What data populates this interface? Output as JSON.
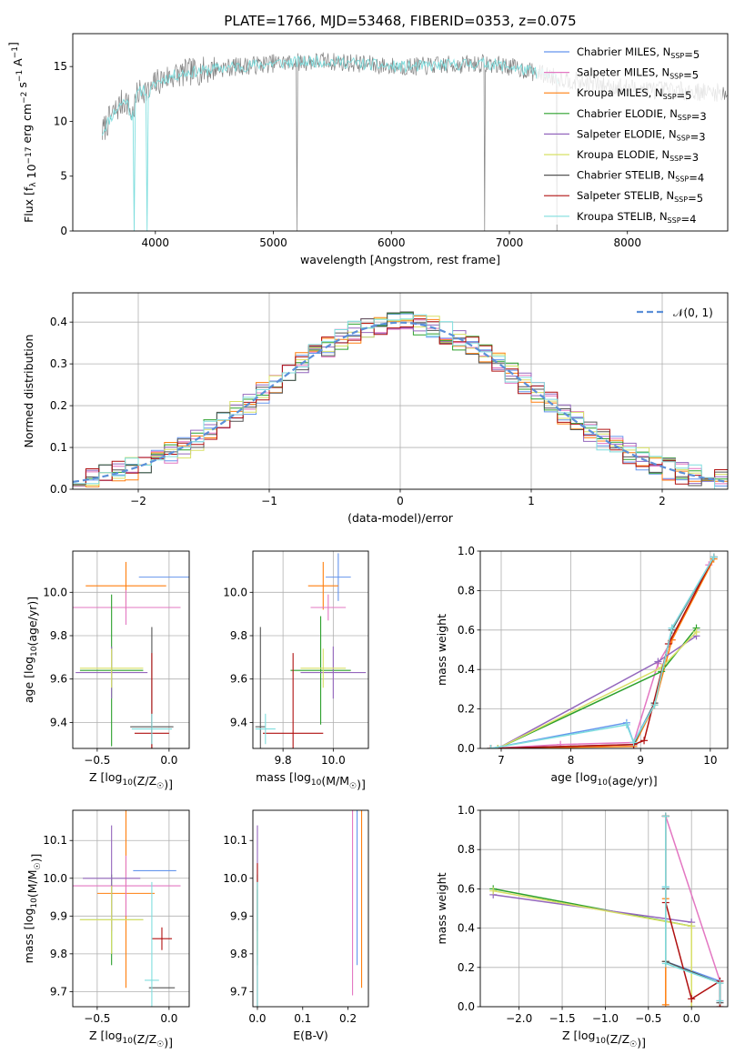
{
  "figure_title": "PLATE=1766, MJD=53468, FIBERID=0353, z=0.075",
  "series_colors": [
    "#6495ed",
    "#e377c2",
    "#ff7f0e",
    "#2ca02c",
    "#9467bd",
    "#d8e066",
    "#555555",
    "#b01010",
    "#7fdede"
  ],
  "chart_data": [
    {
      "id": "spectrum",
      "type": "line",
      "title": "PLATE=1766, MJD=53468, FIBERID=0353, z=0.075",
      "xlabel": "wavelength [Angstrom, rest frame]",
      "ylabel": "Flux [f_λ 10^-17 erg cm^-2 s^-1 A^-1]",
      "xlim": [
        3300,
        8850
      ],
      "ylim": [
        0,
        18
      ],
      "xticks": [
        4000,
        5000,
        6000,
        7000,
        8000
      ],
      "yticks": [
        0,
        5,
        10,
        15
      ],
      "grid": false,
      "legend_position": "right",
      "data_color": "#808080",
      "model_color": "#7fdede",
      "spectrum_x": [
        3550,
        3600,
        3650,
        3700,
        3750,
        3800,
        3850,
        3900,
        3950,
        4000,
        4100,
        4200,
        4300,
        4400,
        4500,
        4600,
        4700,
        4800,
        4900,
        5000,
        5200,
        5400,
        5600,
        5800,
        6000,
        6200,
        6400,
        6600,
        6800,
        7000,
        7200,
        7400,
        7600,
        7800,
        8000,
        8200,
        8400,
        8600,
        8850
      ],
      "spectrum_y": [
        9.0,
        10.0,
        10.8,
        11.5,
        12.0,
        10.5,
        12.5,
        13.0,
        12.5,
        13.5,
        14.0,
        14.3,
        14.5,
        14.6,
        14.8,
        14.9,
        15.0,
        15.1,
        15.2,
        15.3,
        15.4,
        15.5,
        15.4,
        15.2,
        15.0,
        15.0,
        15.1,
        15.2,
        15.3,
        15.0,
        14.5,
        14.0,
        13.6,
        13.3,
        13.1,
        12.9,
        12.8,
        12.7,
        12.6
      ],
      "legend": [
        "Chabrier MILES, N_SSP=5",
        "Salpeter MILES, N_SSP=5",
        "Kroupa MILES, N_SSP=5",
        "Chabrier ELODIE, N_SSP=3",
        "Salpeter ELODIE, N_SSP=3",
        "Kroupa ELODIE, N_SSP=3",
        "Chabrier STELIB, N_SSP=4",
        "Salpeter STELIB, N_SSP=5",
        "Kroupa STELIB, N_SSP=4"
      ]
    },
    {
      "id": "residuals",
      "type": "line",
      "xlabel": "(data-model)/error",
      "ylabel": "Normed distribution",
      "xlim": [
        -2.5,
        2.5
      ],
      "ylim": [
        0,
        0.47
      ],
      "xticks": [
        -2,
        -1,
        0,
        1,
        2
      ],
      "yticks": [
        0.0,
        0.1,
        0.2,
        0.3,
        0.4
      ],
      "grid": true,
      "legend_position": "top-right",
      "normal_label": "𝒩(0, 1)",
      "normal_color": "#5b8fd8",
      "hist_bin_width": 0.1
    },
    {
      "id": "age-vs-Z",
      "type": "scatter",
      "xlabel": "Z [log10(Z/Z☉)]",
      "ylabel": "age  [log10(age/yr)]",
      "xlim": [
        -0.67,
        0.14
      ],
      "ylim": [
        9.28,
        10.19
      ],
      "xticks": [
        -0.5,
        0.0
      ],
      "xticklabels": [
        "−0.5",
        "0.0"
      ],
      "yticks": [
        9.4,
        9.6,
        9.8,
        10.0
      ],
      "grid": true,
      "points": [
        {
          "series": 0,
          "x": 0.0,
          "y": 10.07,
          "xerr": 0.21,
          "yerr": 0
        },
        {
          "series": 2,
          "x": -0.3,
          "y": 10.03,
          "xerr": 0.28,
          "yerr": 0.11
        },
        {
          "series": 1,
          "x": -0.3,
          "y": 9.93,
          "xerr": 0.38,
          "yerr": 0.08
        },
        {
          "series": 3,
          "x": -0.4,
          "y": 9.64,
          "xerr": 0.22,
          "yerr": 0.35
        },
        {
          "series": 4,
          "x": -0.4,
          "y": 9.63,
          "xerr": 0.25,
          "yerr": 0.12
        },
        {
          "series": 5,
          "x": -0.4,
          "y": 9.65,
          "xerr": 0.22,
          "yerr": 0.09
        },
        {
          "series": 6,
          "x": -0.12,
          "y": 9.38,
          "xerr": 0.15,
          "yerr": 0.46
        },
        {
          "series": 7,
          "x": -0.12,
          "y": 9.35,
          "xerr": 0.12,
          "yerr": 0.37
        },
        {
          "series": 8,
          "x": -0.12,
          "y": 9.37,
          "xerr": 0.14,
          "yerr": 0.07
        }
      ]
    },
    {
      "id": "age-vs-mass",
      "type": "scatter",
      "xlabel": "mass [log10(M/M☉)]",
      "ylabel": "",
      "xlim": [
        9.68,
        10.14
      ],
      "ylim": [
        9.28,
        10.19
      ],
      "xticks": [
        9.8,
        10.0
      ],
      "yticks": [
        9.4,
        9.6,
        9.8,
        10.0
      ],
      "grid": true,
      "points": [
        {
          "series": 0,
          "x": 10.02,
          "y": 10.07,
          "xerr": 0.05,
          "yerr": 0.11
        },
        {
          "series": 2,
          "x": 9.96,
          "y": 10.03,
          "xerr": 0.06,
          "yerr": 0.11
        },
        {
          "series": 1,
          "x": 9.98,
          "y": 9.93,
          "xerr": 0.07,
          "yerr": 0.06
        },
        {
          "series": 3,
          "x": 9.95,
          "y": 9.64,
          "xerr": 0.12,
          "yerr": 0.25
        },
        {
          "series": 4,
          "x": 10.0,
          "y": 9.63,
          "xerr": 0.13,
          "yerr": 0.12
        },
        {
          "series": 5,
          "x": 9.96,
          "y": 9.65,
          "xerr": 0.09,
          "yerr": 0.09
        },
        {
          "series": 6,
          "x": 9.71,
          "y": 9.38,
          "xerr": 0.02,
          "yerr": 0.46
        },
        {
          "series": 7,
          "x": 9.84,
          "y": 9.35,
          "xerr": 0.12,
          "yerr": 0.37
        },
        {
          "series": 8,
          "x": 9.73,
          "y": 9.37,
          "xerr": 0.04,
          "yerr": 0.07
        }
      ]
    },
    {
      "id": "weight-vs-age",
      "type": "line",
      "xlabel": "age  [log10(age/yr)]",
      "ylabel": "mass weight",
      "xlim": [
        6.7,
        10.25
      ],
      "ylim": [
        0,
        1.0
      ],
      "xticks": [
        7,
        8,
        9,
        10
      ],
      "yticks": [
        0.0,
        0.2,
        0.4,
        0.6,
        0.8,
        1.0
      ],
      "grid": true,
      "series": [
        {
          "x": [
            6.85,
            8.8,
            8.9,
            9.2,
            9.45,
            10.05
          ],
          "y": [
            0.0,
            0.13,
            0.03,
            0.23,
            0.61,
            0.97
          ]
        },
        {
          "x": [
            6.85,
            7.85,
            8.9,
            9.25,
            9.45,
            9.98
          ],
          "y": [
            0.0,
            0.02,
            0.03,
            0.43,
            0.55,
            0.93
          ]
        },
        {
          "x": [
            6.85,
            8.9,
            9.2,
            9.45,
            10.05
          ],
          "y": [
            0.0,
            0.01,
            0.22,
            0.55,
            0.96
          ]
        },
        {
          "x": [
            6.95,
            9.3,
            9.8
          ],
          "y": [
            0.0,
            0.39,
            0.61
          ]
        },
        {
          "x": [
            6.95,
            9.25,
            9.8
          ],
          "y": [
            0.0,
            0.44,
            0.57
          ]
        },
        {
          "x": [
            6.95,
            9.3,
            9.8
          ],
          "y": [
            0.0,
            0.41,
            0.59
          ]
        },
        {
          "x": [
            6.85,
            8.9,
            9.2,
            9.45,
            10.05
          ],
          "y": [
            0.0,
            0.02,
            0.23,
            0.6,
            0.97
          ]
        },
        {
          "x": [
            6.85,
            8.9,
            9.05,
            9.4,
            10.05
          ],
          "y": [
            0.0,
            0.02,
            0.04,
            0.53,
            0.97
          ]
        },
        {
          "x": [
            6.85,
            8.8,
            8.9,
            9.2,
            9.45,
            10.05
          ],
          "y": [
            0.0,
            0.12,
            0.03,
            0.22,
            0.61,
            0.97
          ]
        }
      ]
    },
    {
      "id": "mass-vs-Z",
      "type": "scatter",
      "xlabel": "Z [log10(Z/Z☉)]",
      "ylabel": "mass [log10(M/M☉)]",
      "xlim": [
        -0.67,
        0.14
      ],
      "ylim": [
        9.66,
        10.18
      ],
      "xticks": [
        -0.5,
        0.0
      ],
      "xticklabels": [
        "−0.5",
        "0.0"
      ],
      "yticks": [
        9.7,
        9.8,
        9.9,
        10.0,
        10.1
      ],
      "grid": true,
      "points": [
        {
          "series": 0,
          "x": -0.1,
          "y": 10.02,
          "xerr": 0.15,
          "yerr": 0
        },
        {
          "series": 2,
          "x": -0.3,
          "y": 9.96,
          "xerr": 0.2,
          "yerr": 0.25
        },
        {
          "series": 1,
          "x": -0.3,
          "y": 9.98,
          "xerr": 0.38,
          "yerr": 0.08
        },
        {
          "series": 3,
          "x": -0.4,
          "y": 9.89,
          "xerr": 0.22,
          "yerr": 0.12
        },
        {
          "series": 4,
          "x": -0.4,
          "y": 10.0,
          "xerr": 0.2,
          "yerr": 0.14
        },
        {
          "series": 5,
          "x": -0.4,
          "y": 9.89,
          "xerr": 0.22,
          "yerr": 0.09
        },
        {
          "series": 6,
          "x": -0.05,
          "y": 9.71,
          "xerr": 0.09,
          "yerr": 0
        },
        {
          "series": 7,
          "x": -0.05,
          "y": 9.84,
          "xerr": 0.07,
          "yerr": 0.03
        },
        {
          "series": 8,
          "x": -0.12,
          "y": 9.73,
          "xerr": 0.05,
          "yerr": 0.26
        }
      ]
    },
    {
      "id": "mass-vs-ebv",
      "type": "scatter",
      "xlabel": "E(B-V)",
      "ylabel": "",
      "xlim": [
        -0.01,
        0.245
      ],
      "ylim": [
        9.66,
        10.18
      ],
      "xticks": [
        0.0,
        0.1,
        0.2
      ],
      "yticks": [
        9.7,
        9.8,
        9.9,
        10.0,
        10.1
      ],
      "grid": false,
      "points": [
        {
          "series": 0,
          "x": 0.22,
          "y": 10.02,
          "yerr": 0.25
        },
        {
          "series": 2,
          "x": 0.23,
          "y": 9.96,
          "yerr": 0.25
        },
        {
          "series": 1,
          "x": 0.21,
          "y": 9.98,
          "yerr": 0.29
        },
        {
          "series": 3,
          "x": 0.0,
          "y": 9.89,
          "yerr": 0.12
        },
        {
          "series": 4,
          "x": 0.0,
          "y": 10.0,
          "yerr": 0.14
        },
        {
          "series": 5,
          "x": 0.0,
          "y": 9.89,
          "yerr": 0.09
        },
        {
          "series": 6,
          "x": 0.0,
          "y": 9.71,
          "yerr": 0.26
        },
        {
          "series": 7,
          "x": 0.0,
          "y": 9.84,
          "yerr": 0.2
        },
        {
          "series": 8,
          "x": 0.0,
          "y": 9.73,
          "yerr": 0.26
        }
      ]
    },
    {
      "id": "weight-vs-Z",
      "type": "line",
      "xlabel": "Z [log10(Z/Z☉)]",
      "ylabel": "mass weight",
      "xlim": [
        -2.45,
        0.42
      ],
      "ylim": [
        0,
        1.0
      ],
      "xticks": [
        -2.0,
        -1.5,
        -1.0,
        -0.5,
        0.0
      ],
      "xticklabels": [
        "−2.0",
        "−1.5",
        "−1.0",
        "−0.5",
        "0.0"
      ],
      "yticks": [
        0.0,
        0.2,
        0.4,
        0.6,
        0.8,
        1.0
      ],
      "grid": true,
      "series": [
        {
          "x": [
            -0.3,
            -0.3,
            -0.3,
            0.33,
            0.33
          ],
          "y": [
            0.97,
            0.61,
            0.23,
            0.13,
            0.03
          ]
        },
        {
          "x": [
            -0.3,
            0.33,
            0.33
          ],
          "y": [
            0.97,
            0.13,
            0.03
          ]
        },
        {
          "x": [
            -0.3,
            -0.3,
            -0.3,
            -0.3
          ],
          "y": [
            0.97,
            0.55,
            0.23,
            0.01
          ]
        },
        {
          "x": [
            -2.3,
            0.0
          ],
          "y": [
            0.6,
            0.41
          ]
        },
        {
          "x": [
            -2.3,
            0.0
          ],
          "y": [
            0.57,
            0.43
          ]
        },
        {
          "x": [
            -2.3,
            0.0,
            0.0
          ],
          "y": [
            0.59,
            0.41,
            0.0
          ]
        },
        {
          "x": [
            -0.3,
            -0.3,
            -0.3,
            0.33,
            0.33
          ],
          "y": [
            0.97,
            0.6,
            0.23,
            0.12,
            0.02
          ]
        },
        {
          "x": [
            -0.3,
            -0.3,
            0.0,
            0.33,
            0.33
          ],
          "y": [
            0.97,
            0.53,
            0.04,
            0.13,
            0.0
          ]
        },
        {
          "x": [
            -0.3,
            -0.3,
            -0.3,
            0.33,
            0.33
          ],
          "y": [
            0.97,
            0.61,
            0.22,
            0.12,
            0.03
          ]
        }
      ]
    }
  ]
}
